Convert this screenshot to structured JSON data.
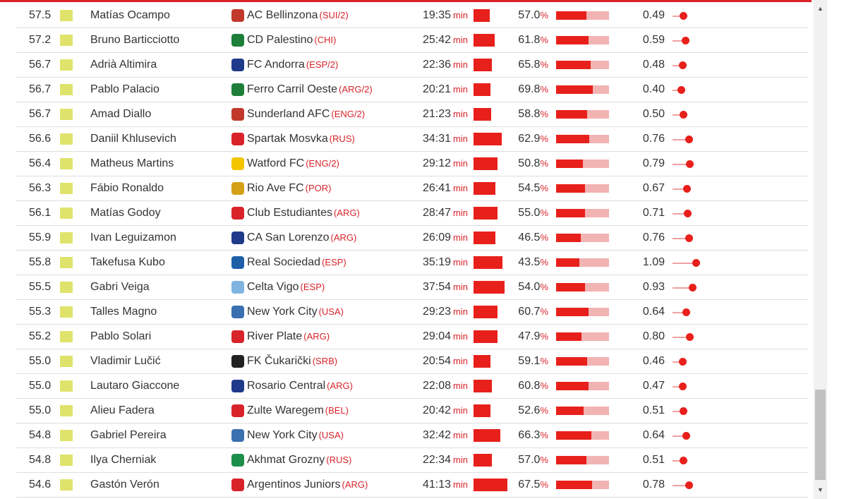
{
  "colors": {
    "accent": "#e8201b",
    "bar_track": "#f2b3b3",
    "rating_swatch": "#dfe36b",
    "league_text": "#d9232a"
  },
  "units": {
    "minutes": "min",
    "percent": "%"
  },
  "scrollbar": {
    "up_icon": "▲",
    "down_icon": "▼"
  },
  "rows": [
    {
      "rating": "57.5",
      "player": "Matías Ocampo",
      "club": "AC Bellinzona",
      "league": "(SUI/2)",
      "minutes": "19:35",
      "pass_pct": "57.0",
      "pass_frac": 0.57,
      "xg": "0.49",
      "club_icon": "club-crest-icon",
      "club_color": "#c0392b"
    },
    {
      "rating": "57.2",
      "player": "Bruno Barticciotto",
      "club": "CD Palestino",
      "league": "(CHI)",
      "minutes": "25:42",
      "pass_pct": "61.8",
      "pass_frac": 0.618,
      "xg": "0.59",
      "club_icon": "club-crest-icon",
      "club_color": "#1e7f3a"
    },
    {
      "rating": "56.7",
      "player": "Adrià Altimira",
      "club": "FC Andorra",
      "league": "(ESP/2)",
      "minutes": "22:36",
      "pass_pct": "65.8",
      "pass_frac": 0.658,
      "xg": "0.48",
      "club_icon": "club-crest-icon",
      "club_color": "#1f3a8a"
    },
    {
      "rating": "56.7",
      "player": "Pablo Palacio",
      "club": "Ferro Carril Oeste",
      "league": "(ARG/2)",
      "minutes": "20:21",
      "pass_pct": "69.8",
      "pass_frac": 0.698,
      "xg": "0.40",
      "club_icon": "club-crest-icon",
      "club_color": "#1e7f3a"
    },
    {
      "rating": "56.7",
      "player": "Amad Diallo",
      "club": "Sunderland AFC",
      "league": "(ENG/2)",
      "minutes": "21:23",
      "pass_pct": "58.8",
      "pass_frac": 0.588,
      "xg": "0.50",
      "club_icon": "club-crest-icon",
      "club_color": "#c0392b"
    },
    {
      "rating": "56.6",
      "player": "Daniil Khlusevich",
      "club": "Spartak Mosvka",
      "league": "(RUS)",
      "minutes": "34:31",
      "pass_pct": "62.9",
      "pass_frac": 0.629,
      "xg": "0.76",
      "club_icon": "club-crest-icon",
      "club_color": "#d9232a"
    },
    {
      "rating": "56.4",
      "player": "Matheus Martins",
      "club": "Watford FC",
      "league": "(ENG/2)",
      "minutes": "29:12",
      "pass_pct": "50.8",
      "pass_frac": 0.508,
      "xg": "0.79",
      "club_icon": "club-crest-icon",
      "club_color": "#f2c500"
    },
    {
      "rating": "56.3",
      "player": "Fábio Ronaldo",
      "club": "Rio Ave FC",
      "league": "(POR)",
      "minutes": "26:41",
      "pass_pct": "54.5",
      "pass_frac": 0.545,
      "xg": "0.67",
      "club_icon": "club-crest-icon",
      "club_color": "#d4a017"
    },
    {
      "rating": "56.1",
      "player": "Matías Godoy",
      "club": "Club Estudiantes",
      "league": "(ARG)",
      "minutes": "28:47",
      "pass_pct": "55.0",
      "pass_frac": 0.55,
      "xg": "0.71",
      "club_icon": "club-crest-icon",
      "club_color": "#d9232a"
    },
    {
      "rating": "55.9",
      "player": "Ivan Leguizamon",
      "club": "CA San Lorenzo",
      "league": "(ARG)",
      "minutes": "26:09",
      "pass_pct": "46.5",
      "pass_frac": 0.465,
      "xg": "0.76",
      "club_icon": "club-crest-icon",
      "club_color": "#1f3a8a"
    },
    {
      "rating": "55.8",
      "player": "Takefusa Kubo",
      "club": "Real Sociedad",
      "league": "(ESP)",
      "minutes": "35:19",
      "pass_pct": "43.5",
      "pass_frac": 0.435,
      "xg": "1.09",
      "club_icon": "club-crest-icon",
      "club_color": "#1f5fa8"
    },
    {
      "rating": "55.5",
      "player": "Gabri Veiga",
      "club": "Celta Vigo",
      "league": "(ESP)",
      "minutes": "37:54",
      "pass_pct": "54.0",
      "pass_frac": 0.54,
      "xg": "0.93",
      "club_icon": "club-crest-icon",
      "club_color": "#7fb3e0"
    },
    {
      "rating": "55.3",
      "player": "Talles Magno",
      "club": "New York City",
      "league": "(USA)",
      "minutes": "29:23",
      "pass_pct": "60.7",
      "pass_frac": 0.607,
      "xg": "0.64",
      "club_icon": "club-crest-icon",
      "club_color": "#3a6fb0"
    },
    {
      "rating": "55.2",
      "player": "Pablo Solari",
      "club": "River Plate",
      "league": "(ARG)",
      "minutes": "29:04",
      "pass_pct": "47.9",
      "pass_frac": 0.479,
      "xg": "0.80",
      "club_icon": "club-crest-icon",
      "club_color": "#d9232a"
    },
    {
      "rating": "55.0",
      "player": "Vladimir Lučić",
      "club": "FK Čukarički",
      "league": "(SRB)",
      "minutes": "20:54",
      "pass_pct": "59.1",
      "pass_frac": 0.591,
      "xg": "0.46",
      "club_icon": "club-crest-icon",
      "club_color": "#222222"
    },
    {
      "rating": "55.0",
      "player": "Lautaro Giaccone",
      "club": "Rosario Central",
      "league": "(ARG)",
      "minutes": "22:08",
      "pass_pct": "60.8",
      "pass_frac": 0.608,
      "xg": "0.47",
      "club_icon": "club-crest-icon",
      "club_color": "#1f3a8a"
    },
    {
      "rating": "55.0",
      "player": "Alieu Fadera",
      "club": "Zulte Waregem",
      "league": "(BEL)",
      "minutes": "20:42",
      "pass_pct": "52.6",
      "pass_frac": 0.526,
      "xg": "0.51",
      "club_icon": "club-crest-icon",
      "club_color": "#d9232a"
    },
    {
      "rating": "54.8",
      "player": "Gabriel Pereira",
      "club": "New York City",
      "league": "(USA)",
      "minutes": "32:42",
      "pass_pct": "66.3",
      "pass_frac": 0.663,
      "xg": "0.64",
      "club_icon": "club-crest-icon",
      "club_color": "#3a6fb0"
    },
    {
      "rating": "54.8",
      "player": "Ilya Cherniak",
      "club": "Akhmat Grozny",
      "league": "(RUS)",
      "minutes": "22:34",
      "pass_pct": "57.0",
      "pass_frac": 0.57,
      "xg": "0.51",
      "club_icon": "club-crest-icon",
      "club_color": "#1e8f4a"
    },
    {
      "rating": "54.6",
      "player": "Gastón Verón",
      "club": "Argentinos Juniors",
      "league": "(ARG)",
      "minutes": "41:13",
      "pass_pct": "67.5",
      "pass_frac": 0.675,
      "xg": "0.78",
      "club_icon": "club-crest-icon",
      "club_color": "#d9232a"
    }
  ]
}
